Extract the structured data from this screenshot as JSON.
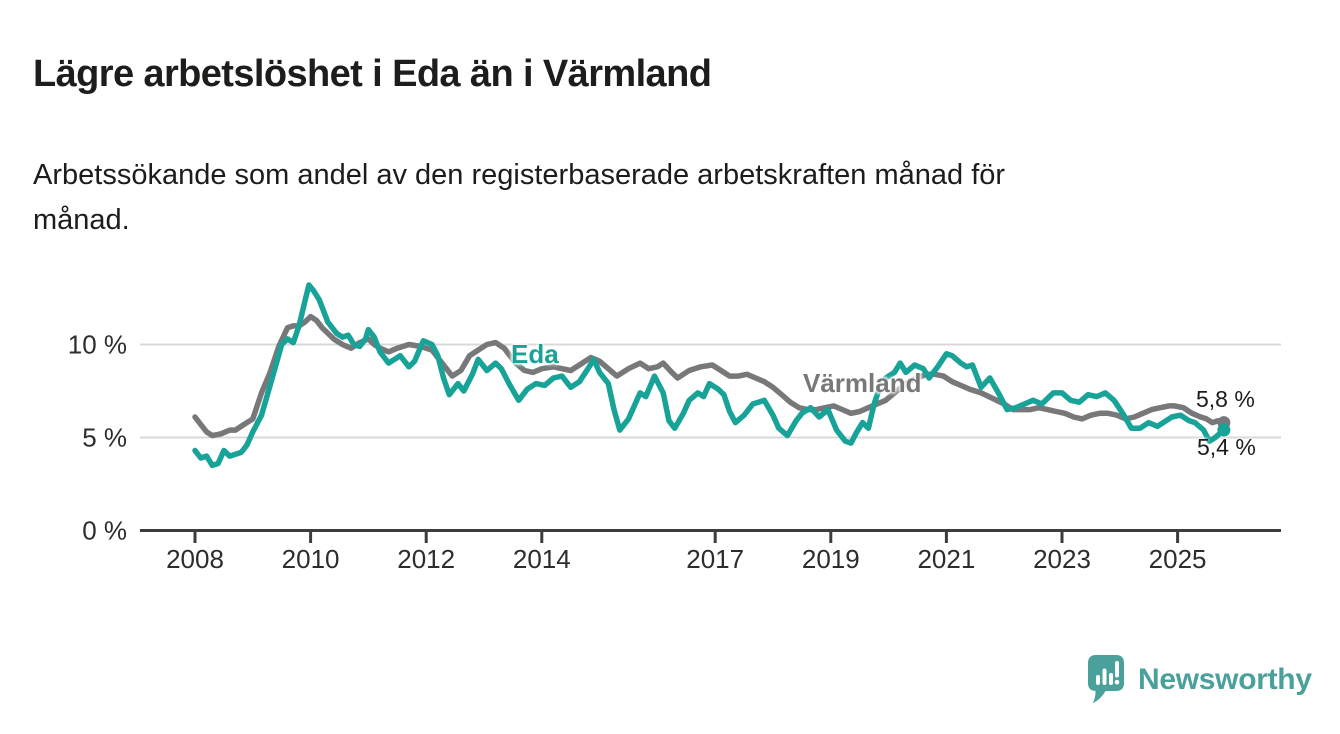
{
  "header": {
    "title": "Lägre arbetslöshet i Eda än i Värmland",
    "subtitle": "Arbetssökande som andel av den registerbaserade arbetskraften månad för månad."
  },
  "chart_data": {
    "type": "line",
    "unit": "%",
    "grid": true,
    "legend_position": "inline-series-labels",
    "x_axis": {
      "ticks": [
        2008,
        2010,
        2012,
        2014,
        2017,
        2019,
        2021,
        2023,
        2025
      ],
      "xlim": [
        2007.05,
        2026.8
      ]
    },
    "y_axis": {
      "ticks": [
        {
          "value": 0,
          "label": "0 %"
        },
        {
          "value": 5,
          "label": "5 %"
        },
        {
          "value": 10,
          "label": "10 %"
        }
      ],
      "gridlines": [
        5,
        10
      ],
      "ylim": [
        0,
        14.8
      ]
    },
    "series": [
      {
        "name": "Värmland",
        "color": "#78787a",
        "end_label": "5,8 %",
        "last_value": 5.8,
        "points": [
          [
            2008.0,
            6.1
          ],
          [
            2008.1,
            5.7
          ],
          [
            2008.2,
            5.3
          ],
          [
            2008.3,
            5.1
          ],
          [
            2008.45,
            5.2
          ],
          [
            2008.6,
            5.4
          ],
          [
            2008.7,
            5.4
          ],
          [
            2008.8,
            5.6
          ],
          [
            2008.9,
            5.8
          ],
          [
            2009.0,
            6.0
          ],
          [
            2009.15,
            7.4
          ],
          [
            2009.3,
            8.5
          ],
          [
            2009.45,
            9.9
          ],
          [
            2009.6,
            10.9
          ],
          [
            2009.7,
            11.0
          ],
          [
            2009.8,
            11.0
          ],
          [
            2009.9,
            11.2
          ],
          [
            2010.0,
            11.5
          ],
          [
            2010.1,
            11.3
          ],
          [
            2010.2,
            10.9
          ],
          [
            2010.3,
            10.6
          ],
          [
            2010.4,
            10.3
          ],
          [
            2010.55,
            10.0
          ],
          [
            2010.7,
            9.8
          ],
          [
            2010.85,
            10.1
          ],
          [
            2011.0,
            10.3
          ],
          [
            2011.1,
            10.0
          ],
          [
            2011.2,
            9.8
          ],
          [
            2011.35,
            9.6
          ],
          [
            2011.5,
            9.8
          ],
          [
            2011.7,
            10.0
          ],
          [
            2011.9,
            9.9
          ],
          [
            2012.1,
            9.7
          ],
          [
            2012.25,
            9.1
          ],
          [
            2012.45,
            8.3
          ],
          [
            2012.6,
            8.6
          ],
          [
            2012.75,
            9.4
          ],
          [
            2012.9,
            9.7
          ],
          [
            2013.05,
            10.0
          ],
          [
            2013.2,
            10.1
          ],
          [
            2013.35,
            9.8
          ],
          [
            2013.45,
            9.4
          ],
          [
            2013.55,
            9.0
          ],
          [
            2013.7,
            8.6
          ],
          [
            2013.85,
            8.5
          ],
          [
            2014.0,
            8.7
          ],
          [
            2014.2,
            8.8
          ],
          [
            2014.35,
            8.7
          ],
          [
            2014.5,
            8.6
          ],
          [
            2014.65,
            8.9
          ],
          [
            2014.85,
            9.3
          ],
          [
            2015.0,
            9.1
          ],
          [
            2015.15,
            8.7
          ],
          [
            2015.3,
            8.3
          ],
          [
            2015.5,
            8.7
          ],
          [
            2015.7,
            9.0
          ],
          [
            2015.85,
            8.7
          ],
          [
            2016.0,
            8.8
          ],
          [
            2016.1,
            9.0
          ],
          [
            2016.25,
            8.5
          ],
          [
            2016.35,
            8.2
          ],
          [
            2016.55,
            8.6
          ],
          [
            2016.75,
            8.8
          ],
          [
            2016.95,
            8.9
          ],
          [
            2017.1,
            8.6
          ],
          [
            2017.25,
            8.3
          ],
          [
            2017.4,
            8.3
          ],
          [
            2017.55,
            8.4
          ],
          [
            2017.7,
            8.2
          ],
          [
            2017.85,
            8.0
          ],
          [
            2018.0,
            7.7
          ],
          [
            2018.15,
            7.3
          ],
          [
            2018.3,
            6.9
          ],
          [
            2018.45,
            6.6
          ],
          [
            2018.6,
            6.5
          ],
          [
            2018.75,
            6.5
          ],
          [
            2018.9,
            6.6
          ],
          [
            2019.05,
            6.7
          ],
          [
            2019.2,
            6.5
          ],
          [
            2019.35,
            6.3
          ],
          [
            2019.5,
            6.4
          ],
          [
            2019.65,
            6.6
          ],
          [
            2019.8,
            6.8
          ],
          [
            2019.95,
            7.0
          ],
          [
            2020.1,
            7.4
          ],
          [
            2020.3,
            7.9
          ],
          [
            2020.5,
            8.2
          ],
          [
            2020.65,
            8.4
          ],
          [
            2020.8,
            8.4
          ],
          [
            2020.95,
            8.3
          ],
          [
            2021.1,
            8.0
          ],
          [
            2021.25,
            7.8
          ],
          [
            2021.4,
            7.6
          ],
          [
            2021.6,
            7.4
          ],
          [
            2021.8,
            7.1
          ],
          [
            2022.0,
            6.8
          ],
          [
            2022.15,
            6.5
          ],
          [
            2022.3,
            6.5
          ],
          [
            2022.45,
            6.5
          ],
          [
            2022.6,
            6.6
          ],
          [
            2022.75,
            6.5
          ],
          [
            2022.9,
            6.4
          ],
          [
            2023.05,
            6.3
          ],
          [
            2023.2,
            6.1
          ],
          [
            2023.35,
            6.0
          ],
          [
            2023.5,
            6.2
          ],
          [
            2023.65,
            6.3
          ],
          [
            2023.8,
            6.3
          ],
          [
            2023.95,
            6.2
          ],
          [
            2024.1,
            6.0
          ],
          [
            2024.25,
            6.1
          ],
          [
            2024.4,
            6.3
          ],
          [
            2024.55,
            6.5
          ],
          [
            2024.7,
            6.6
          ],
          [
            2024.85,
            6.7
          ],
          [
            2024.95,
            6.7
          ],
          [
            2025.1,
            6.6
          ],
          [
            2025.25,
            6.3
          ],
          [
            2025.4,
            6.1
          ],
          [
            2025.5,
            6.0
          ],
          [
            2025.6,
            5.8
          ],
          [
            2025.7,
            5.9
          ],
          [
            2025.8,
            5.8
          ]
        ]
      },
      {
        "name": "Eda",
        "color": "#17a398",
        "end_label": "5,4 %",
        "last_value": 5.4,
        "points": [
          [
            2008.0,
            4.3
          ],
          [
            2008.1,
            3.9
          ],
          [
            2008.2,
            4.0
          ],
          [
            2008.3,
            3.5
          ],
          [
            2008.4,
            3.6
          ],
          [
            2008.5,
            4.3
          ],
          [
            2008.6,
            4.0
          ],
          [
            2008.7,
            4.1
          ],
          [
            2008.8,
            4.2
          ],
          [
            2008.9,
            4.6
          ],
          [
            2009.0,
            5.3
          ],
          [
            2009.15,
            6.2
          ],
          [
            2009.3,
            7.8
          ],
          [
            2009.4,
            8.9
          ],
          [
            2009.5,
            10.0
          ],
          [
            2009.6,
            10.3
          ],
          [
            2009.7,
            10.1
          ],
          [
            2009.8,
            11.0
          ],
          [
            2009.9,
            12.3
          ],
          [
            2009.97,
            13.2
          ],
          [
            2010.05,
            12.9
          ],
          [
            2010.15,
            12.4
          ],
          [
            2010.3,
            11.2
          ],
          [
            2010.45,
            10.6
          ],
          [
            2010.55,
            10.4
          ],
          [
            2010.65,
            10.5
          ],
          [
            2010.75,
            10.0
          ],
          [
            2010.85,
            9.9
          ],
          [
            2010.95,
            10.3
          ],
          [
            2011.0,
            10.8
          ],
          [
            2011.1,
            10.4
          ],
          [
            2011.2,
            9.6
          ],
          [
            2011.35,
            9.0
          ],
          [
            2011.45,
            9.2
          ],
          [
            2011.55,
            9.4
          ],
          [
            2011.7,
            8.8
          ],
          [
            2011.8,
            9.1
          ],
          [
            2011.95,
            10.2
          ],
          [
            2012.1,
            10.0
          ],
          [
            2012.2,
            9.4
          ],
          [
            2012.3,
            8.2
          ],
          [
            2012.4,
            7.3
          ],
          [
            2012.55,
            7.9
          ],
          [
            2012.65,
            7.5
          ],
          [
            2012.8,
            8.4
          ],
          [
            2012.9,
            9.2
          ],
          [
            2013.05,
            8.6
          ],
          [
            2013.2,
            9.0
          ],
          [
            2013.3,
            8.7
          ],
          [
            2013.45,
            7.8
          ],
          [
            2013.6,
            7.0
          ],
          [
            2013.75,
            7.6
          ],
          [
            2013.9,
            7.9
          ],
          [
            2014.05,
            7.8
          ],
          [
            2014.2,
            8.2
          ],
          [
            2014.35,
            8.3
          ],
          [
            2014.5,
            7.7
          ],
          [
            2014.65,
            8.0
          ],
          [
            2014.8,
            8.7
          ],
          [
            2014.9,
            9.2
          ],
          [
            2015.0,
            8.5
          ],
          [
            2015.15,
            7.9
          ],
          [
            2015.25,
            6.5
          ],
          [
            2015.35,
            5.4
          ],
          [
            2015.5,
            6.0
          ],
          [
            2015.6,
            6.7
          ],
          [
            2015.7,
            7.4
          ],
          [
            2015.8,
            7.2
          ],
          [
            2015.95,
            8.3
          ],
          [
            2016.1,
            7.4
          ],
          [
            2016.2,
            5.9
          ],
          [
            2016.3,
            5.5
          ],
          [
            2016.45,
            6.3
          ],
          [
            2016.55,
            7.0
          ],
          [
            2016.7,
            7.4
          ],
          [
            2016.8,
            7.2
          ],
          [
            2016.9,
            7.9
          ],
          [
            2017.05,
            7.6
          ],
          [
            2017.15,
            7.3
          ],
          [
            2017.25,
            6.4
          ],
          [
            2017.35,
            5.8
          ],
          [
            2017.5,
            6.2
          ],
          [
            2017.65,
            6.8
          ],
          [
            2017.85,
            7.0
          ],
          [
            2018.0,
            6.2
          ],
          [
            2018.1,
            5.5
          ],
          [
            2018.25,
            5.1
          ],
          [
            2018.4,
            5.9
          ],
          [
            2018.5,
            6.3
          ],
          [
            2018.65,
            6.6
          ],
          [
            2018.8,
            6.1
          ],
          [
            2018.95,
            6.5
          ],
          [
            2019.1,
            5.4
          ],
          [
            2019.25,
            4.8
          ],
          [
            2019.35,
            4.7
          ],
          [
            2019.45,
            5.3
          ],
          [
            2019.55,
            5.8
          ],
          [
            2019.65,
            5.5
          ],
          [
            2019.75,
            6.8
          ],
          [
            2019.85,
            7.7
          ],
          [
            2019.95,
            8.2
          ],
          [
            2020.1,
            8.5
          ],
          [
            2020.2,
            9.0
          ],
          [
            2020.3,
            8.5
          ],
          [
            2020.45,
            8.9
          ],
          [
            2020.6,
            8.7
          ],
          [
            2020.7,
            8.2
          ],
          [
            2020.85,
            8.8
          ],
          [
            2021.0,
            9.5
          ],
          [
            2021.1,
            9.4
          ],
          [
            2021.25,
            9.0
          ],
          [
            2021.35,
            8.8
          ],
          [
            2021.45,
            8.9
          ],
          [
            2021.6,
            7.7
          ],
          [
            2021.75,
            8.2
          ],
          [
            2021.9,
            7.4
          ],
          [
            2022.05,
            6.5
          ],
          [
            2022.2,
            6.6
          ],
          [
            2022.35,
            6.8
          ],
          [
            2022.5,
            7.0
          ],
          [
            2022.65,
            6.8
          ],
          [
            2022.85,
            7.4
          ],
          [
            2023.0,
            7.4
          ],
          [
            2023.15,
            7.0
          ],
          [
            2023.3,
            6.9
          ],
          [
            2023.45,
            7.3
          ],
          [
            2023.6,
            7.2
          ],
          [
            2023.75,
            7.4
          ],
          [
            2023.9,
            7.0
          ],
          [
            2024.05,
            6.3
          ],
          [
            2024.2,
            5.5
          ],
          [
            2024.35,
            5.5
          ],
          [
            2024.5,
            5.8
          ],
          [
            2024.65,
            5.6
          ],
          [
            2024.8,
            5.9
          ],
          [
            2024.9,
            6.1
          ],
          [
            2025.05,
            6.2
          ],
          [
            2025.2,
            5.9
          ],
          [
            2025.3,
            5.8
          ],
          [
            2025.45,
            5.4
          ],
          [
            2025.55,
            4.8
          ],
          [
            2025.65,
            5.0
          ],
          [
            2025.8,
            5.4
          ]
        ]
      }
    ],
    "annotations": {
      "varmland_end_label": "5,8 %",
      "eda_end_label": "5,4 %"
    }
  },
  "footer": {
    "brand": "Newsworthy",
    "brand_color": "#4aa09a",
    "logo_icon": "speech-bubble-bar-chart-icon"
  }
}
